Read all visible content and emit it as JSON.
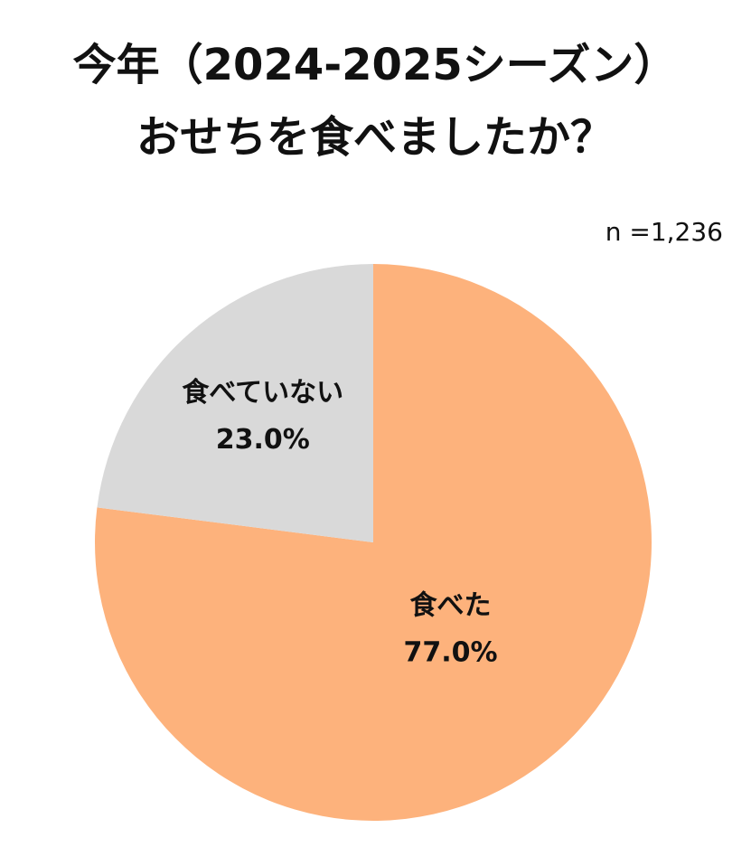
{
  "chart_data": {
    "type": "pie",
    "title": [
      "今年（2024-2025シーズン）",
      "おせちを食べましたか？"
    ],
    "annotation": "n =1,236",
    "categories": [
      "食べた",
      "食べていない"
    ],
    "values": [
      77.0,
      23.0
    ],
    "value_labels": [
      "77.0%",
      "23.0%"
    ],
    "colors": [
      "#fdb27c",
      "#d9d9d9"
    ]
  }
}
